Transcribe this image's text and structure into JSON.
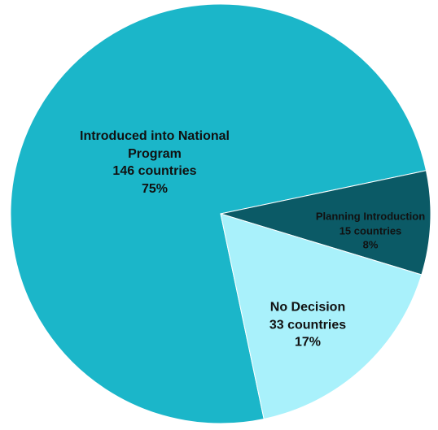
{
  "chart_data": {
    "type": "pie",
    "categories": [
      "Introduced into National Program",
      "Planning Introduction",
      "No Decision"
    ],
    "values": [
      75,
      8,
      17
    ],
    "value_labels": [
      "75%",
      "8%",
      "17%"
    ],
    "count_labels": [
      "146 countries",
      "15 countries",
      "33 countries"
    ],
    "colors": [
      "#1bb6c9",
      "#0b5a66",
      "#a9f1fb"
    ]
  }
}
